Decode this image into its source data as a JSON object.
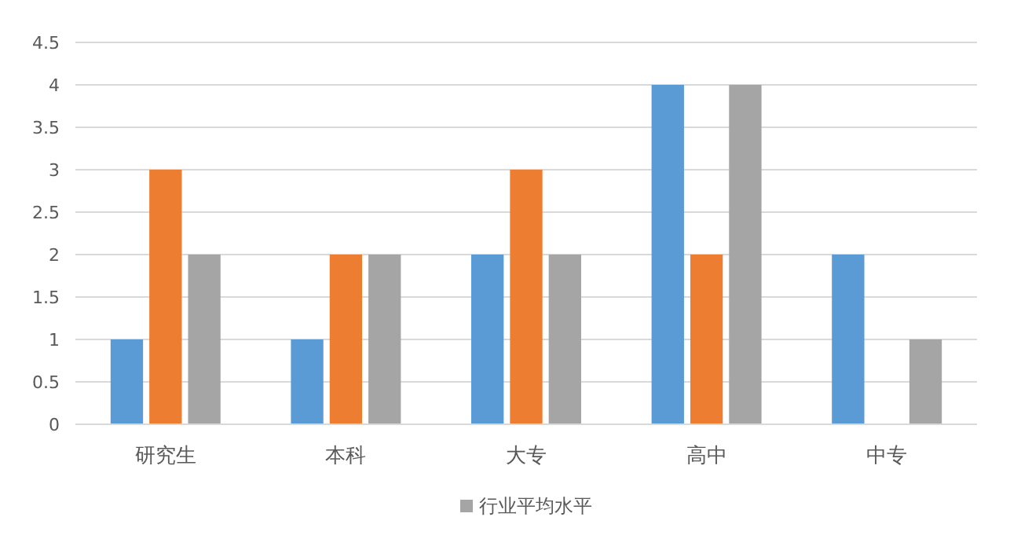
{
  "chart_data": {
    "type": "bar",
    "categories": [
      "研究生",
      "本科",
      "大专",
      "高中",
      "中专"
    ],
    "series": [
      {
        "color": "#5b9bd5",
        "values": [
          1,
          1,
          2,
          4,
          2
        ]
      },
      {
        "color": "#ed7d31",
        "values": [
          3,
          2,
          3,
          2,
          0
        ]
      },
      {
        "name": "行业平均水平",
        "color": "#a5a5a5",
        "values": [
          2,
          2,
          2,
          4,
          1
        ]
      }
    ],
    "ylim": [
      0,
      4.5
    ],
    "yticks": [
      0,
      0.5,
      1,
      1.5,
      2,
      2.5,
      3,
      3.5,
      4,
      4.5
    ],
    "grid": "y",
    "legend": "bottom"
  }
}
